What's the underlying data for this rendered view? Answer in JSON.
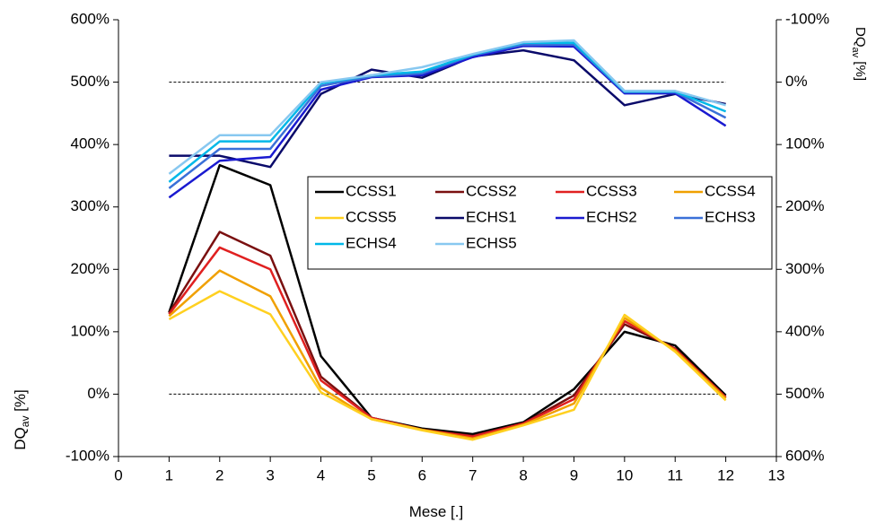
{
  "chart_data": {
    "type": "line",
    "x_label": "Mese [.]",
    "y_label": [
      "DQ",
      "av",
      " [%]"
    ],
    "y2_label": [
      "DQ",
      "av",
      " [%]"
    ],
    "x": [
      1,
      2,
      3,
      4,
      5,
      6,
      7,
      8,
      9,
      10,
      11,
      12
    ],
    "xlim": [
      0,
      13
    ],
    "xticks": [
      0,
      1,
      2,
      3,
      4,
      5,
      6,
      7,
      8,
      9,
      10,
      11,
      12,
      13
    ],
    "ylim": [
      -100,
      600
    ],
    "yticks": [
      {
        "value": -100,
        "label": "-100%"
      },
      {
        "value": 0,
        "label": "0%"
      },
      {
        "value": 100,
        "label": "100%"
      },
      {
        "value": 200,
        "label": "200%"
      },
      {
        "value": 300,
        "label": "300%"
      },
      {
        "value": 400,
        "label": "400%"
      },
      {
        "value": 500,
        "label": "500%"
      },
      {
        "value": 600,
        "label": "600%"
      }
    ],
    "y2lim": [
      600,
      -100
    ],
    "y2ticks": [
      {
        "value": -100,
        "label": "-100%"
      },
      {
        "value": 0,
        "label": "0%"
      },
      {
        "value": 100,
        "label": "100%"
      },
      {
        "value": 200,
        "label": "200%"
      },
      {
        "value": 300,
        "label": "300%"
      },
      {
        "value": 400,
        "label": "400%"
      },
      {
        "value": 500,
        "label": "500%"
      },
      {
        "value": 600,
        "label": "600%"
      }
    ],
    "reference_lines": [
      {
        "value": 0,
        "axis": "y"
      },
      {
        "value": 0,
        "axis": "y2"
      }
    ],
    "legend": "center-right",
    "series": [
      {
        "name": "CCSS1",
        "color": "#000000",
        "values": [
          131,
          367,
          335,
          61,
          -38,
          -55,
          -64,
          -45,
          8,
          100,
          78,
          -2
        ]
      },
      {
        "name": "CCSS2",
        "color": "#7a1010",
        "values": [
          130,
          260,
          222,
          28,
          -38,
          -57,
          -67,
          -47,
          -2,
          112,
          73,
          -5
        ]
      },
      {
        "name": "CCSS3",
        "color": "#e02020",
        "values": [
          128,
          235,
          200,
          22,
          -38,
          -57,
          -68,
          -47,
          -8,
          117,
          72,
          -5
        ]
      },
      {
        "name": "CCSS4",
        "color": "#f0a000",
        "values": [
          125,
          198,
          157,
          10,
          -40,
          -57,
          -71,
          -49,
          -15,
          122,
          70,
          -7
        ]
      },
      {
        "name": "CCSS5",
        "color": "#ffd020",
        "values": [
          120,
          165,
          128,
          3,
          -40,
          -58,
          -73,
          -50,
          -25,
          127,
          68,
          -10
        ]
      },
      {
        "name": "ECHS1",
        "color": "#0a0a6a",
        "axis": "y2",
        "values": [
          118,
          118,
          136,
          19,
          -20,
          -7,
          -41,
          -51,
          -35,
          37,
          19,
          35
        ]
      },
      {
        "name": "ECHS2",
        "color": "#1a1ad0",
        "axis": "y2",
        "values": [
          185,
          126,
          120,
          12,
          -8,
          -11,
          -40,
          -58,
          -57,
          18,
          18,
          70
        ]
      },
      {
        "name": "ECHS3",
        "color": "#3a70d8",
        "axis": "y2",
        "values": [
          170,
          107,
          107,
          6,
          -9,
          -14,
          -43,
          -60,
          -60,
          16,
          16,
          57
        ]
      },
      {
        "name": "ECHS4",
        "color": "#00b8e8",
        "axis": "y2",
        "values": [
          160,
          95,
          95,
          2,
          -11,
          -17,
          -44,
          -63,
          -63,
          15,
          15,
          47
        ]
      },
      {
        "name": "ECHS5",
        "color": "#88c8f0",
        "axis": "y2",
        "values": [
          147,
          85,
          85,
          0,
          -11,
          -24,
          -45,
          -64,
          -67,
          14,
          14,
          37
        ]
      }
    ]
  }
}
